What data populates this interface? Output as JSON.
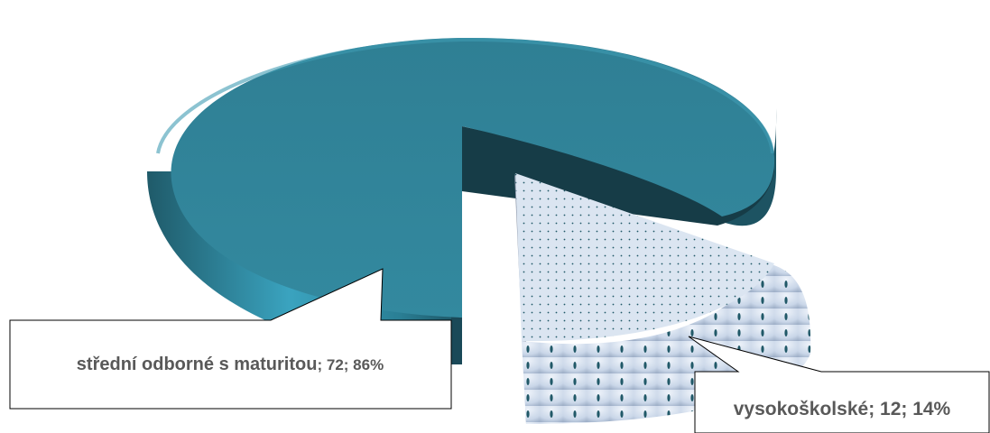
{
  "chart_data": {
    "type": "pie",
    "title": "",
    "slices": [
      {
        "label": "střední odborné s maturitou",
        "value": 72,
        "percent": "86%",
        "pattern": "solid"
      },
      {
        "label": "vysokoškolské",
        "value": 12,
        "percent": "14%",
        "pattern": "dotted"
      }
    ],
    "labels": {
      "slice0": {
        "name": "střední odborné s maturitou",
        "sep": "; ",
        "value": "72",
        "percent": "86%"
      },
      "slice1": {
        "name": "vysokoškolské",
        "sep": "; ",
        "value": "12",
        "percent": "14%"
      }
    },
    "legend": "none",
    "colors": {
      "slice0_top": "#31849b",
      "slice0_side": "#215968",
      "slice0_dark": "#163c47",
      "slice1_top": "#dbe5f1",
      "slice1_dot": "#215968",
      "label_text": "#595959",
      "label_border": "#000000"
    }
  }
}
